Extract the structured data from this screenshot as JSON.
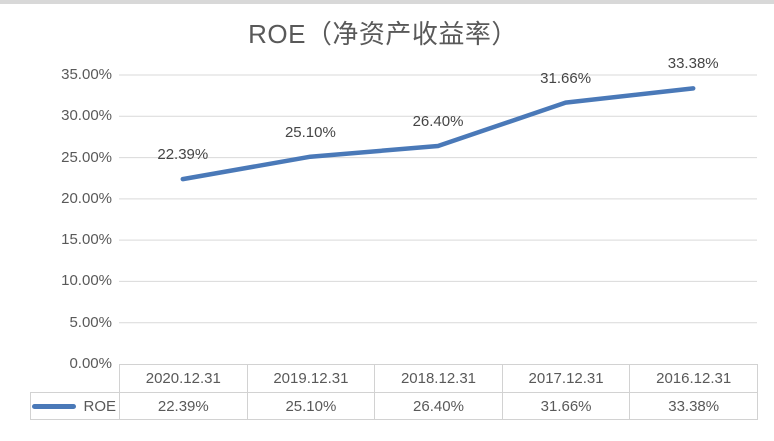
{
  "window": {
    "top_edge_color": "#d8d8d8",
    "background": "#ffffff"
  },
  "chart_data": {
    "type": "line",
    "title": "ROE（净资产收益率）",
    "categories": [
      "2020.12.31",
      "2019.12.31",
      "2018.12.31",
      "2017.12.31",
      "2016.12.31"
    ],
    "series": [
      {
        "name": "ROE",
        "values": [
          22.39,
          25.1,
          26.4,
          31.66,
          33.38
        ],
        "color": "#4a79b8"
      }
    ],
    "value_labels": [
      "22.39%",
      "25.10%",
      "26.40%",
      "31.66%",
      "33.38%"
    ],
    "y_axis": {
      "min": 0,
      "max": 35,
      "step": 5,
      "tick_labels": [
        "35.00%",
        "30.00%",
        "25.00%",
        "20.00%",
        "15.00%",
        "10.00%",
        "5.00%",
        "0.00%"
      ]
    },
    "grid": true,
    "legend_position": "data-table-left",
    "data_table_shown": true
  },
  "colors": {
    "gridline": "#d9d9d9",
    "table_border": "#d2d2d2",
    "axis_text": "#595959",
    "label_text": "#454545",
    "title_text": "#595959"
  }
}
